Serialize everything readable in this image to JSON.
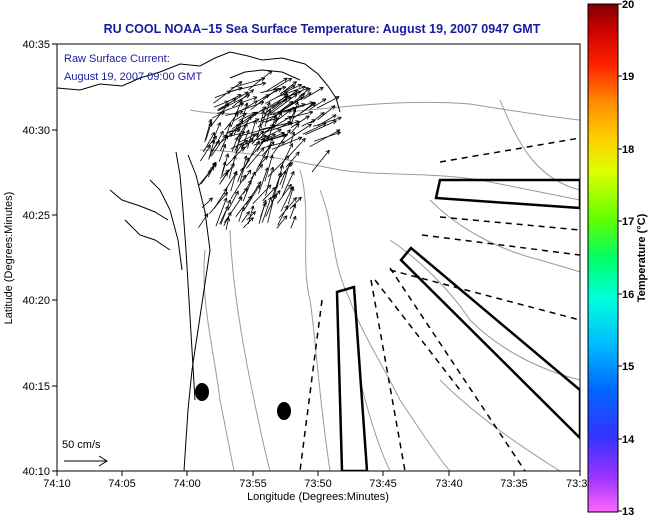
{
  "title": "RU COOL  NOAA–15  Sea Surface Temperature:  August 19, 2007 0947 GMT",
  "overlay": {
    "line1": "Raw Surface Current:",
    "line2": "August 19, 2007 09:00 GMT"
  },
  "scale_label": "50 cm/s",
  "axes": {
    "xlabel": "Longitude (Degrees:Minutes)",
    "ylabel": "Latitude (Degrees:Minutes)",
    "x_ticks": [
      "74:10",
      "74:05",
      "74:00",
      "73:55",
      "73:50",
      "73:45",
      "73:40",
      "73:35",
      "73:3"
    ],
    "y_ticks": [
      "40:35",
      "40:30",
      "40:25",
      "40:20",
      "40:15",
      "40:10"
    ]
  },
  "colorbar": {
    "label": "Temperature (°C)",
    "ticks": [
      "20",
      "19",
      "18",
      "17",
      "16",
      "15",
      "14",
      "13"
    ],
    "min": 13,
    "max": 20
  },
  "colors": {
    "title": "#1a1aa0",
    "contour": "#9a9a9a",
    "coast": "#000000"
  }
}
